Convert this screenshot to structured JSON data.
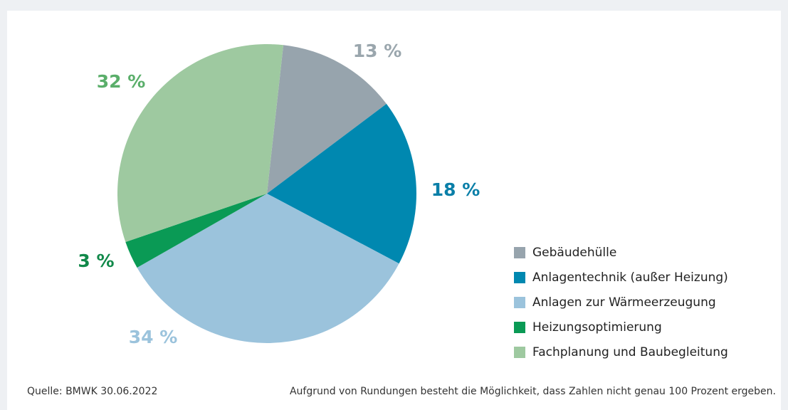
{
  "chart_data": {
    "type": "pie",
    "categories": [
      "Gebäudehülle",
      "Anlagentechnik (außer Heizung)",
      "Anlagen zur Wärmeerzeugung",
      "Heizungsoptimierung",
      "Fachplanung und Baubegleitung"
    ],
    "values": [
      13,
      18,
      34,
      3,
      32
    ],
    "value_labels": [
      "13 %",
      "18 %",
      "34 %",
      "3 %",
      "32 %"
    ],
    "colors": [
      "#97a4ad",
      "#0088b0",
      "#9bc3dc",
      "#0a9a55",
      "#9ec9a0"
    ],
    "label_colors": [
      "#9aa6ad",
      "#0a7fa8",
      "#9bc3dc",
      "#11894a",
      "#5aae6a"
    ],
    "legend": "right",
    "source": "Quelle: BMWK 30.06.2022",
    "note": "Aufgrund von Rundungen besteht die Möglichkeit, dass Zahlen nicht genau 100 Prozent ergeben."
  }
}
